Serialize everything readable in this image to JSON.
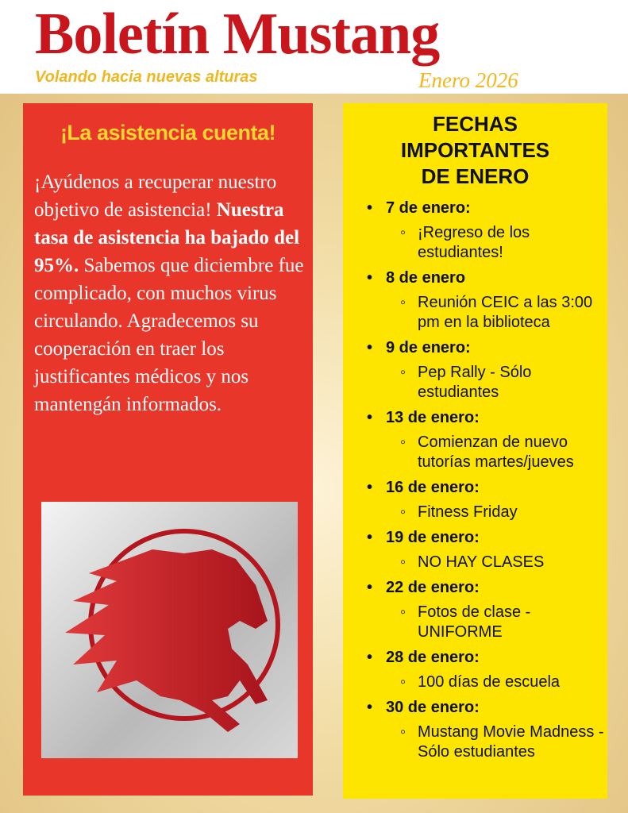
{
  "header": {
    "title": "Boletín Mustang",
    "tagline": "Volando hacia nuevas alturas",
    "issue": "Enero  2026"
  },
  "attendance": {
    "heading": "¡La asistencia cuenta!",
    "p1": "¡Ayúdenos a recuperar nuestro objetivo de asistencia! ",
    "bold": "Nuestra tasa de asistencia ha bajado del 95%.",
    "p2": " Sabemos que diciembre fue complicado, con muchos virus circulando. Agradecemos su cooperación en traer los justificantes médicos y nos mantengán informados.",
    "accent": "#e8362b"
  },
  "dates": {
    "heading": [
      "FECHAS",
      "IMPORTANTES",
      "DE ENERO"
    ],
    "items": [
      {
        "date": "7 de enero:",
        "event": "¡Regreso de los estudiantes!"
      },
      {
        "date": "8 de enero",
        "event": "Reunión CEIC a las 3:00 pm en la biblioteca"
      },
      {
        "date": "9 de enero:",
        "event": "Pep Rally - Sólo estudiantes"
      },
      {
        "date": "13 de enero:",
        "event": "Comienzan de nuevo tutorías martes/jueves"
      },
      {
        "date": "16 de enero:",
        "event": "Fitness Friday"
      },
      {
        "date": "19 de enero:",
        "event": "NO HAY CLASES"
      },
      {
        "date": "22 de enero:",
        "event": "Fotos de clase - UNIFORME"
      },
      {
        "date": "28 de enero:",
        "event": "100 días de escuela"
      },
      {
        "date": "30 de enero:",
        "event": "Mustang Movie Madness -  Sólo estudiantes"
      }
    ]
  }
}
